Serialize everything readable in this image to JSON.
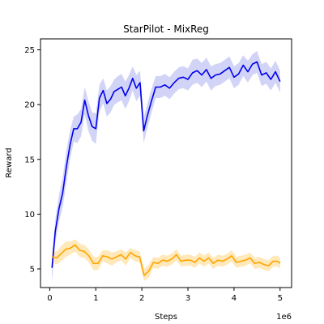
{
  "chart_data": {
    "type": "line",
    "title": "StarPilot - MixReg",
    "xlabel": "Steps",
    "ylabel": "Reward",
    "x_offset_label": "1e6",
    "xlim": [
      -0.2,
      5.25
    ],
    "ylim": [
      3.3,
      26.0
    ],
    "xticks": [
      0,
      1,
      2,
      3,
      4,
      5
    ],
    "yticks": [
      5,
      10,
      15,
      20,
      25
    ],
    "grid": false,
    "legend": "none",
    "series": [
      {
        "color": "#0000ee",
        "band_color": "#c7c9f5",
        "x": [
          0.05,
          0.12,
          0.2,
          0.28,
          0.36,
          0.44,
          0.52,
          0.6,
          0.68,
          0.76,
          0.84,
          0.92,
          1.0,
          1.08,
          1.16,
          1.24,
          1.32,
          1.4,
          1.48,
          1.56,
          1.64,
          1.72,
          1.8,
          1.88,
          1.96,
          2.04,
          2.12,
          2.2,
          2.3,
          2.4,
          2.5,
          2.6,
          2.7,
          2.8,
          2.9,
          3.0,
          3.1,
          3.2,
          3.3,
          3.4,
          3.5,
          3.6,
          3.7,
          3.8,
          3.9,
          4.0,
          4.1,
          4.2,
          4.3,
          4.4,
          4.5,
          4.6,
          4.7,
          4.8,
          4.9,
          5.0
        ],
        "y": [
          5.1,
          8.4,
          10.5,
          11.9,
          14.3,
          16.3,
          17.8,
          17.8,
          18.4,
          20.4,
          19.0,
          18.0,
          17.8,
          20.6,
          21.3,
          20.1,
          20.5,
          21.2,
          21.4,
          21.6,
          20.8,
          21.5,
          22.4,
          21.5,
          22.0,
          17.6,
          19.0,
          20.2,
          21.6,
          21.6,
          21.8,
          21.5,
          22.0,
          22.4,
          22.5,
          22.3,
          22.9,
          23.1,
          22.7,
          23.2,
          22.4,
          22.7,
          22.8,
          23.1,
          23.4,
          22.5,
          22.8,
          23.6,
          23.0,
          23.7,
          23.9,
          22.7,
          22.9,
          22.3,
          23.0,
          22.1
        ],
        "y_upper": [
          5.9,
          9.5,
          11.7,
          13.3,
          15.8,
          17.6,
          18.9,
          19.1,
          19.6,
          21.6,
          20.3,
          19.3,
          19.2,
          21.8,
          22.4,
          21.3,
          21.7,
          22.3,
          22.6,
          22.8,
          22.1,
          22.7,
          23.5,
          22.7,
          23.1,
          18.8,
          20.1,
          21.3,
          22.6,
          22.6,
          22.8,
          22.5,
          23.0,
          23.4,
          23.5,
          23.3,
          24.1,
          24.2,
          23.8,
          24.3,
          23.5,
          23.7,
          23.8,
          24.1,
          24.4,
          23.5,
          23.8,
          24.5,
          24.0,
          24.6,
          24.9,
          23.7,
          23.9,
          23.3,
          24.0,
          23.1
        ],
        "y_lower": [
          3.8,
          7.3,
          9.3,
          10.6,
          12.9,
          15.0,
          16.6,
          16.5,
          17.1,
          19.1,
          17.6,
          16.7,
          16.4,
          19.4,
          20.1,
          18.9,
          19.3,
          20.0,
          20.2,
          20.4,
          19.6,
          20.3,
          21.3,
          20.3,
          20.8,
          16.5,
          17.9,
          19.1,
          20.6,
          20.6,
          20.8,
          20.5,
          21.0,
          21.4,
          21.5,
          21.3,
          21.8,
          22.0,
          21.6,
          22.1,
          21.3,
          21.7,
          21.8,
          22.1,
          22.4,
          21.5,
          21.8,
          22.6,
          22.0,
          22.7,
          22.9,
          21.7,
          21.9,
          21.3,
          22.0,
          21.1
        ]
      },
      {
        "color": "#ffa500",
        "band_color": "#ffe2a8",
        "x": [
          0.05,
          0.15,
          0.25,
          0.35,
          0.45,
          0.55,
          0.65,
          0.75,
          0.85,
          0.95,
          1.05,
          1.15,
          1.25,
          1.35,
          1.45,
          1.55,
          1.65,
          1.75,
          1.85,
          1.95,
          2.05,
          2.15,
          2.25,
          2.35,
          2.45,
          2.55,
          2.65,
          2.75,
          2.85,
          2.95,
          3.05,
          3.15,
          3.25,
          3.35,
          3.45,
          3.55,
          3.65,
          3.75,
          3.85,
          3.95,
          4.05,
          4.15,
          4.25,
          4.35,
          4.45,
          4.55,
          4.65,
          4.75,
          4.85,
          4.95,
          5.0
        ],
        "y": [
          6.1,
          6.0,
          6.4,
          6.8,
          6.9,
          7.2,
          6.7,
          6.6,
          6.2,
          5.5,
          5.5,
          6.2,
          6.1,
          5.9,
          6.1,
          6.3,
          5.9,
          6.5,
          6.2,
          6.1,
          4.4,
          4.8,
          5.6,
          5.5,
          5.8,
          5.7,
          5.9,
          6.3,
          5.7,
          5.8,
          5.8,
          5.6,
          6.0,
          5.7,
          6.0,
          5.5,
          5.8,
          5.7,
          5.9,
          6.2,
          5.6,
          5.7,
          5.8,
          6.0,
          5.5,
          5.6,
          5.4,
          5.3,
          5.7,
          5.7,
          5.5
        ],
        "y_upper": [
          6.6,
          6.6,
          7.1,
          7.5,
          7.5,
          7.7,
          7.3,
          7.2,
          6.8,
          6.1,
          6.1,
          6.7,
          6.7,
          6.5,
          6.6,
          6.8,
          6.5,
          6.9,
          6.7,
          6.6,
          5.0,
          5.4,
          6.1,
          6.0,
          6.3,
          6.2,
          6.4,
          6.8,
          6.2,
          6.3,
          6.3,
          6.1,
          6.5,
          6.2,
          6.5,
          6.0,
          6.3,
          6.2,
          6.4,
          6.7,
          6.1,
          6.2,
          6.3,
          6.5,
          6.0,
          6.1,
          5.9,
          5.8,
          6.2,
          6.2,
          6.0
        ],
        "y_lower": [
          5.6,
          5.4,
          5.7,
          6.1,
          6.3,
          6.6,
          6.1,
          6.0,
          5.6,
          4.9,
          4.9,
          5.7,
          5.5,
          5.3,
          5.6,
          5.8,
          5.3,
          6.0,
          5.7,
          5.6,
          3.9,
          4.2,
          5.1,
          5.0,
          5.3,
          5.2,
          5.4,
          5.8,
          5.2,
          5.3,
          5.3,
          5.1,
          5.5,
          5.2,
          5.5,
          5.0,
          5.3,
          5.2,
          5.4,
          5.7,
          5.1,
          5.2,
          5.3,
          5.5,
          5.0,
          5.1,
          4.9,
          4.8,
          5.2,
          5.2,
          5.0
        ]
      }
    ]
  }
}
